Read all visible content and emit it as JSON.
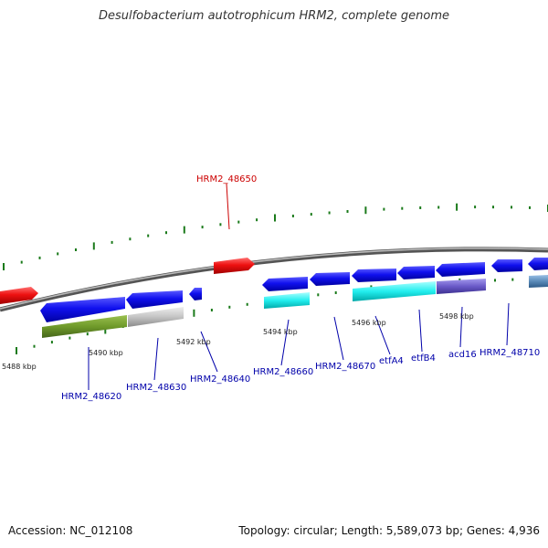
{
  "title": "Desulfobacterium autotrophicum HRM2, complete genome",
  "footer": {
    "accession": "Accession: NC_012108",
    "topology": "Topology: circular; Length: 5,589,073 bp; Genes: 4,936"
  },
  "colors": {
    "forward_gene": "#0a0ae6",
    "highlight_gene": "#ee1111",
    "cyan_feature": "#22eeee",
    "olive_feature": "#6f9a2a",
    "gray_feature": "#c4c4c4",
    "purple_feature": "#6a5ac8",
    "steel_feature": "#5a8ab8",
    "backbone": "#8c8c8c",
    "tick": "#1a7a1a",
    "label_line_blue": "#0000aa",
    "label_line_red": "#cc0000"
  },
  "scale_labels": [
    "5488 kbp",
    "5490 kbp",
    "5492 kbp",
    "5494 kbp",
    "5496 kbp",
    "5498 kbp"
  ],
  "gene_labels": [
    "HRM2_48620",
    "HRM2_48630",
    "HRM2_48640",
    "HRM2_48660",
    "HRM2_48670",
    "etfA4",
    "etfB4",
    "acd16",
    "HRM2_48710"
  ],
  "highlight_label": "HRM2_48650"
}
